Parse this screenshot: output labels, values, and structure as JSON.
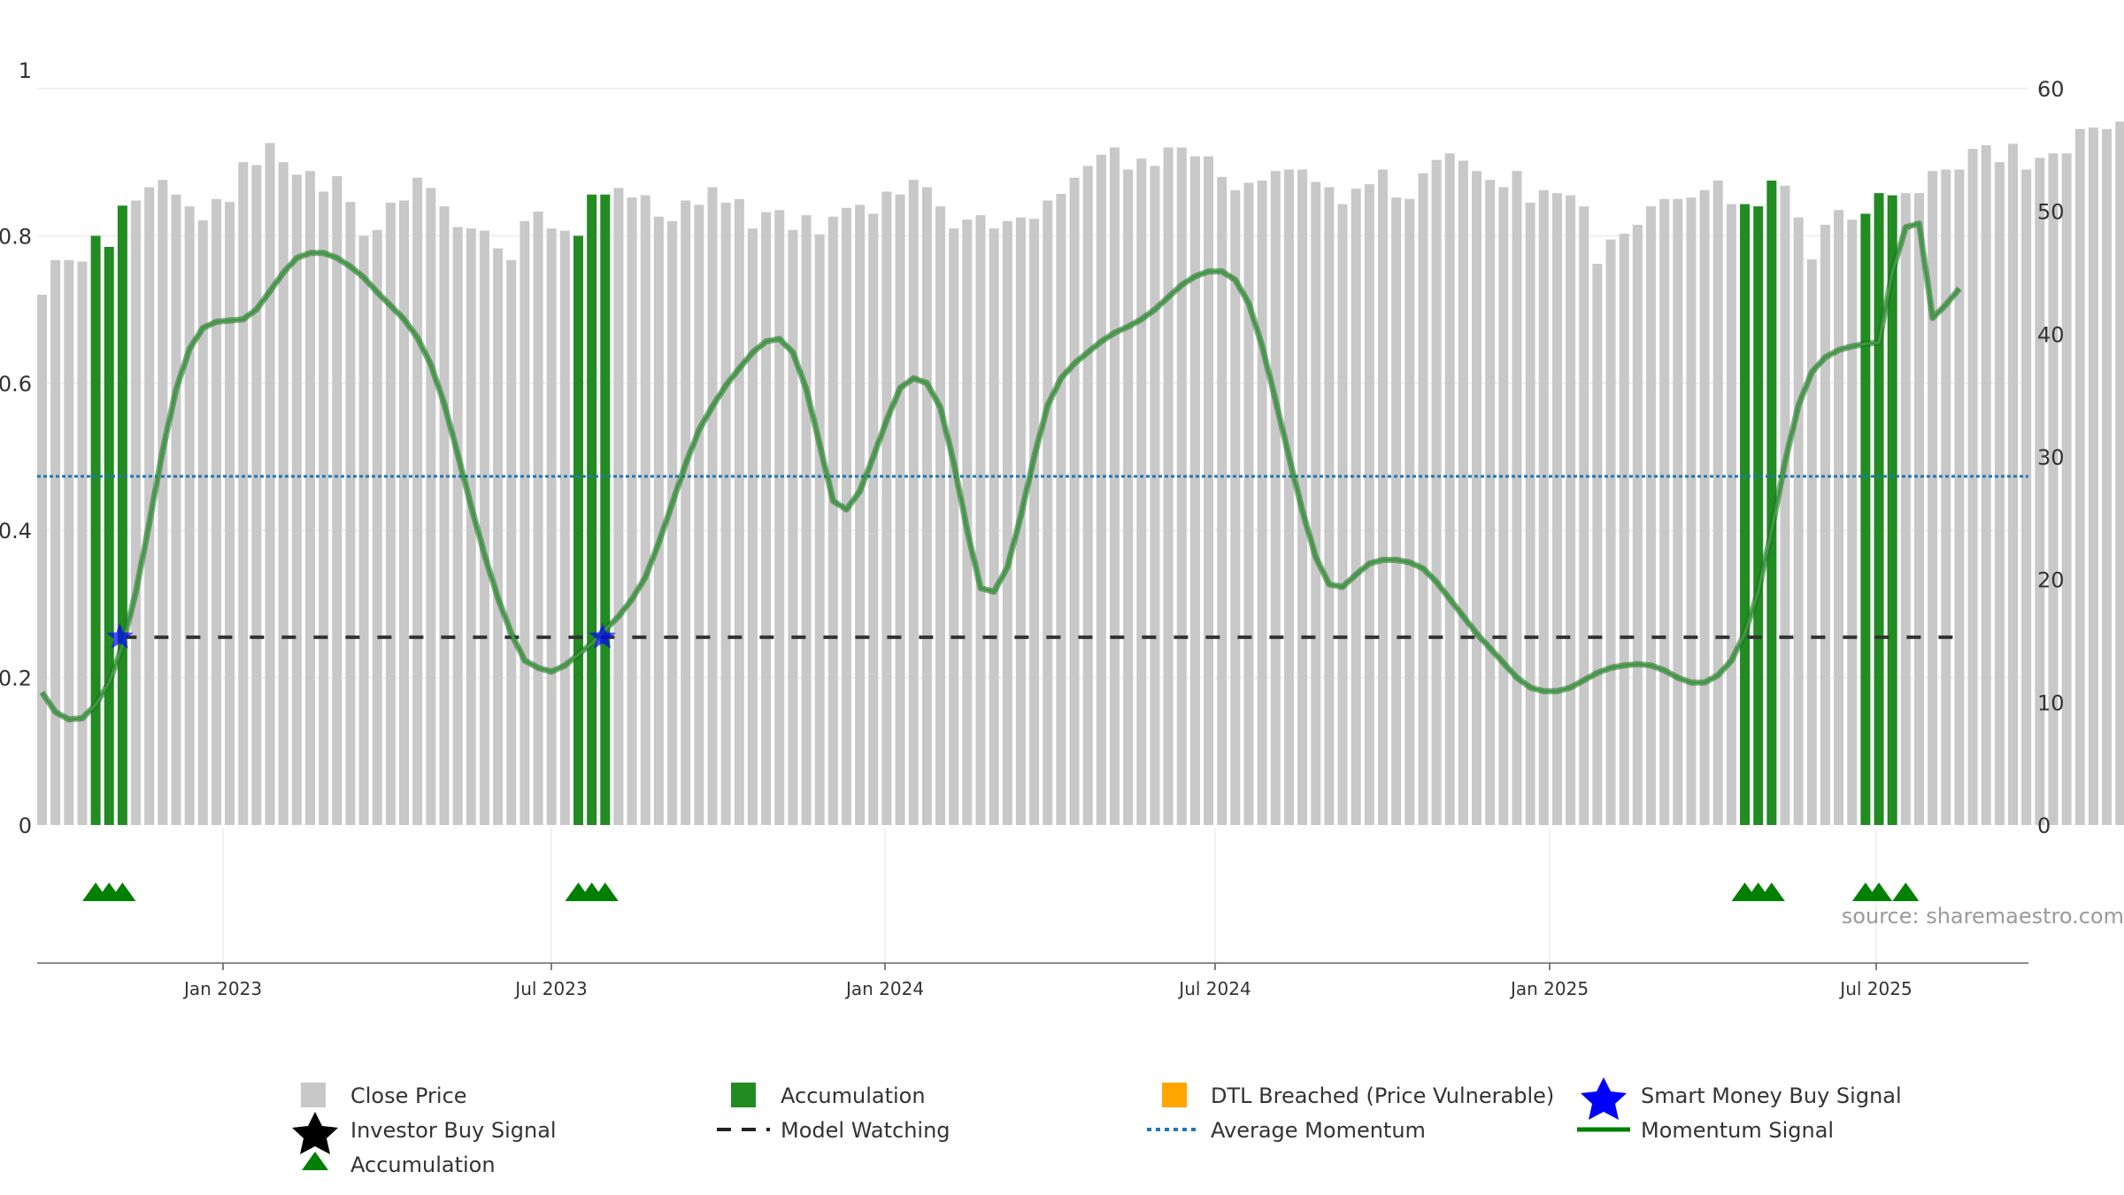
{
  "chart_data": {
    "type": "bar",
    "left_axis": {
      "min": 0,
      "max": 1,
      "ticks": [
        "0",
        "0.2",
        "0.4",
        "0.6",
        "0.8",
        "1"
      ]
    },
    "right_axis": {
      "min": 0,
      "max": 60,
      "ticks": [
        "0",
        "10",
        "20",
        "30",
        "40",
        "50",
        "60"
      ]
    },
    "x_ticks": [
      "Jan 2023",
      "Jul 2023",
      "Jan 2024",
      "Jul 2024",
      "Jan 2025",
      "Jul 2025"
    ],
    "close_price": [
      0.72,
      0.767,
      0.767,
      0.765,
      0.8,
      0.785,
      0.841,
      0.848,
      0.866,
      0.876,
      0.856,
      0.84,
      0.821,
      0.85,
      0.846,
      0.9,
      0.896,
      0.926,
      0.9,
      0.883,
      0.888,
      0.86,
      0.881,
      0.846,
      0.8,
      0.808,
      0.845,
      0.848,
      0.879,
      0.865,
      0.84,
      0.812,
      0.81,
      0.807,
      0.783,
      0.767,
      0.82,
      0.833,
      0.81,
      0.807,
      0.8,
      0.856,
      0.856,
      0.865,
      0.852,
      0.855,
      0.826,
      0.82,
      0.848,
      0.842,
      0.866,
      0.845,
      0.85,
      0.81,
      0.832,
      0.835,
      0.808,
      0.828,
      0.802,
      0.826,
      0.838,
      0.842,
      0.83,
      0.86,
      0.856,
      0.876,
      0.866,
      0.84,
      0.81,
      0.822,
      0.828,
      0.81,
      0.82,
      0.825,
      0.823,
      0.848,
      0.857,
      0.879,
      0.895,
      0.91,
      0.92,
      0.89,
      0.905,
      0.895,
      0.92,
      0.92,
      0.908,
      0.908,
      0.88,
      0.862,
      0.872,
      0.875,
      0.888,
      0.89,
      0.89,
      0.873,
      0.866,
      0.843,
      0.864,
      0.87,
      0.89,
      0.852,
      0.85,
      0.885,
      0.903,
      0.912,
      0.902,
      0.888,
      0.876,
      0.866,
      0.888,
      0.845,
      0.862,
      0.858,
      0.855,
      0.84,
      0.762,
      0.795,
      0.803,
      0.815,
      0.84,
      0.85,
      0.85,
      0.852,
      0.862,
      0.875,
      0.843,
      0.843,
      0.84,
      0.875,
      0.868,
      0.825,
      0.768,
      0.815,
      0.835,
      0.822,
      0.83,
      0.858,
      0.855,
      0.858,
      0.858,
      0.888,
      0.89,
      0.89,
      0.918,
      0.923,
      0.9,
      0.925,
      0.89,
      0.906,
      0.912,
      0.912,
      0.945,
      0.947,
      0.945,
      0.955,
      0.955
    ],
    "accumulation_bars": [
      4,
      5,
      6,
      40,
      41,
      42,
      127,
      128,
      129,
      136,
      137,
      138
    ],
    "accumulation_triangles": [
      4,
      5,
      6,
      40,
      41,
      42,
      127,
      128,
      129,
      136,
      137,
      139
    ],
    "smart_money_buy_signals": [
      6,
      42
    ],
    "model_watching_level": 15.3,
    "average_momentum": 28.4,
    "momentum_signal": [
      [
        0,
        10.8
      ],
      [
        1,
        9.2
      ],
      [
        2,
        8.6
      ],
      [
        3,
        8.7
      ],
      [
        4,
        9.8
      ],
      [
        5,
        11.6
      ],
      [
        6,
        14.6
      ],
      [
        7,
        19.0
      ],
      [
        8,
        24.6
      ],
      [
        9,
        30.5
      ],
      [
        10,
        35.5
      ],
      [
        11,
        38.8
      ],
      [
        12,
        40.5
      ],
      [
        13,
        41.0
      ],
      [
        14,
        41.1
      ],
      [
        15,
        41.2
      ],
      [
        16,
        42.0
      ],
      [
        17,
        43.5
      ],
      [
        18,
        45.0
      ],
      [
        19,
        46.2
      ],
      [
        20,
        46.6
      ],
      [
        21,
        46.6
      ],
      [
        22,
        46.2
      ],
      [
        23,
        45.5
      ],
      [
        24,
        44.6
      ],
      [
        25,
        43.4
      ],
      [
        26,
        42.3
      ],
      [
        27,
        41.2
      ],
      [
        28,
        39.7
      ],
      [
        29,
        37.5
      ],
      [
        30,
        34.3
      ],
      [
        31,
        30.2
      ],
      [
        32,
        26.0
      ],
      [
        33,
        22.0
      ],
      [
        34,
        18.5
      ],
      [
        35,
        15.6
      ],
      [
        36,
        13.4
      ],
      [
        37,
        12.8
      ],
      [
        38,
        12.5
      ],
      [
        39,
        13.0
      ],
      [
        40,
        13.9
      ],
      [
        41,
        14.8
      ],
      [
        42,
        15.9
      ],
      [
        43,
        17.0
      ],
      [
        44,
        18.4
      ],
      [
        45,
        20.2
      ],
      [
        46,
        23.0
      ],
      [
        47,
        26.2
      ],
      [
        48,
        29.4
      ],
      [
        49,
        32.2
      ],
      [
        50,
        34.1
      ],
      [
        51,
        35.8
      ],
      [
        52,
        37.2
      ],
      [
        53,
        38.5
      ],
      [
        54,
        39.4
      ],
      [
        55,
        39.6
      ],
      [
        56,
        38.5
      ],
      [
        57,
        35.5
      ],
      [
        58,
        31.0
      ],
      [
        59,
        26.4
      ],
      [
        60,
        25.7
      ],
      [
        61,
        27.2
      ],
      [
        62,
        30.0
      ],
      [
        63,
        33.0
      ],
      [
        64,
        35.6
      ],
      [
        65,
        36.4
      ],
      [
        66,
        36.0
      ],
      [
        67,
        34.0
      ],
      [
        68,
        29.5
      ],
      [
        69,
        24.0
      ],
      [
        70,
        19.3
      ],
      [
        71,
        19.0
      ],
      [
        72,
        21.0
      ],
      [
        73,
        25.2
      ],
      [
        74,
        30.0
      ],
      [
        75,
        34.2
      ],
      [
        76,
        36.4
      ],
      [
        77,
        37.6
      ],
      [
        78,
        38.5
      ],
      [
        79,
        39.4
      ],
      [
        80,
        40.1
      ],
      [
        81,
        40.6
      ],
      [
        82,
        41.2
      ],
      [
        83,
        42.0
      ],
      [
        84,
        43.0
      ],
      [
        85,
        44.0
      ],
      [
        86,
        44.7
      ],
      [
        87,
        45.1
      ],
      [
        88,
        45.1
      ],
      [
        89,
        44.4
      ],
      [
        90,
        42.5
      ],
      [
        91,
        39.0
      ],
      [
        92,
        34.6
      ],
      [
        93,
        30.0
      ],
      [
        94,
        25.6
      ],
      [
        95,
        21.8
      ],
      [
        96,
        19.6
      ],
      [
        97,
        19.4
      ],
      [
        98,
        20.4
      ],
      [
        99,
        21.3
      ],
      [
        100,
        21.6
      ],
      [
        101,
        21.6
      ],
      [
        102,
        21.4
      ],
      [
        103,
        20.9
      ],
      [
        104,
        19.8
      ],
      [
        105,
        18.4
      ],
      [
        106,
        17.0
      ],
      [
        107,
        15.6
      ],
      [
        108,
        14.4
      ],
      [
        109,
        13.2
      ],
      [
        110,
        12.0
      ],
      [
        111,
        11.2
      ],
      [
        112,
        10.9
      ],
      [
        113,
        10.9
      ],
      [
        114,
        11.2
      ],
      [
        115,
        11.8
      ],
      [
        116,
        12.4
      ],
      [
        117,
        12.8
      ],
      [
        118,
        13.0
      ],
      [
        119,
        13.1
      ],
      [
        120,
        13.0
      ],
      [
        121,
        12.6
      ],
      [
        122,
        12.0
      ],
      [
        123,
        11.6
      ],
      [
        124,
        11.6
      ],
      [
        125,
        12.2
      ],
      [
        126,
        13.4
      ],
      [
        127,
        15.6
      ],
      [
        128,
        19.0
      ],
      [
        129,
        24.0
      ],
      [
        130,
        29.6
      ],
      [
        131,
        34.2
      ],
      [
        132,
        36.9
      ],
      [
        133,
        38.1
      ],
      [
        134,
        38.7
      ],
      [
        135,
        39.0
      ],
      [
        136,
        39.2
      ],
      [
        137,
        39.3
      ],
      [
        138,
        45.0
      ],
      [
        139,
        48.7
      ],
      [
        140,
        49.0
      ],
      [
        141,
        41.3
      ],
      [
        142,
        42.4
      ],
      [
        143,
        43.7
      ]
    ],
    "annotation": "source: sharemaestro.com",
    "legend_placement": "bottom"
  },
  "legend": {
    "close_price": "Close Price",
    "accumulation": "Accumulation",
    "dtl_breached": "DTL Breached (Price Vulnerable)",
    "smart_money_buy": "Smart Money Buy Signal",
    "investor_buy": "Investor Buy Signal",
    "model_watching": "Model Watching",
    "average_momentum": "Average Momentum",
    "momentum_signal": "Momentum Signal",
    "accumulation_triangle": "Accumulation"
  },
  "colors": {
    "close_price": "#c8c8c8",
    "accumulation": "#228b22",
    "dtl_breached": "#ffa500",
    "smart_money": "#0000ff",
    "investor": "#000000",
    "model_watching": "#333333",
    "average_momentum": "#1f77b4",
    "momentum": "#2e7d32",
    "triangle": "#008000"
  }
}
